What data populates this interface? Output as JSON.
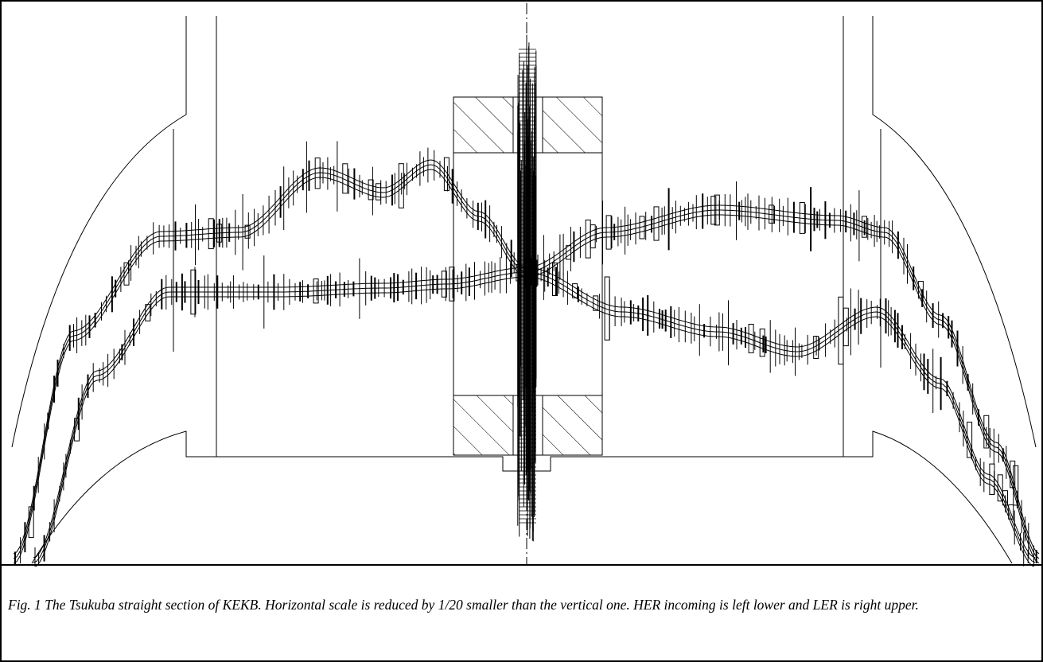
{
  "figure": {
    "caption": "Fig. 1 The Tsukuba straight section of KEKB. Horizontal scale is reduced by 1/20 smaller than the vertical one. HER incoming is left lower and LER is right upper."
  }
}
